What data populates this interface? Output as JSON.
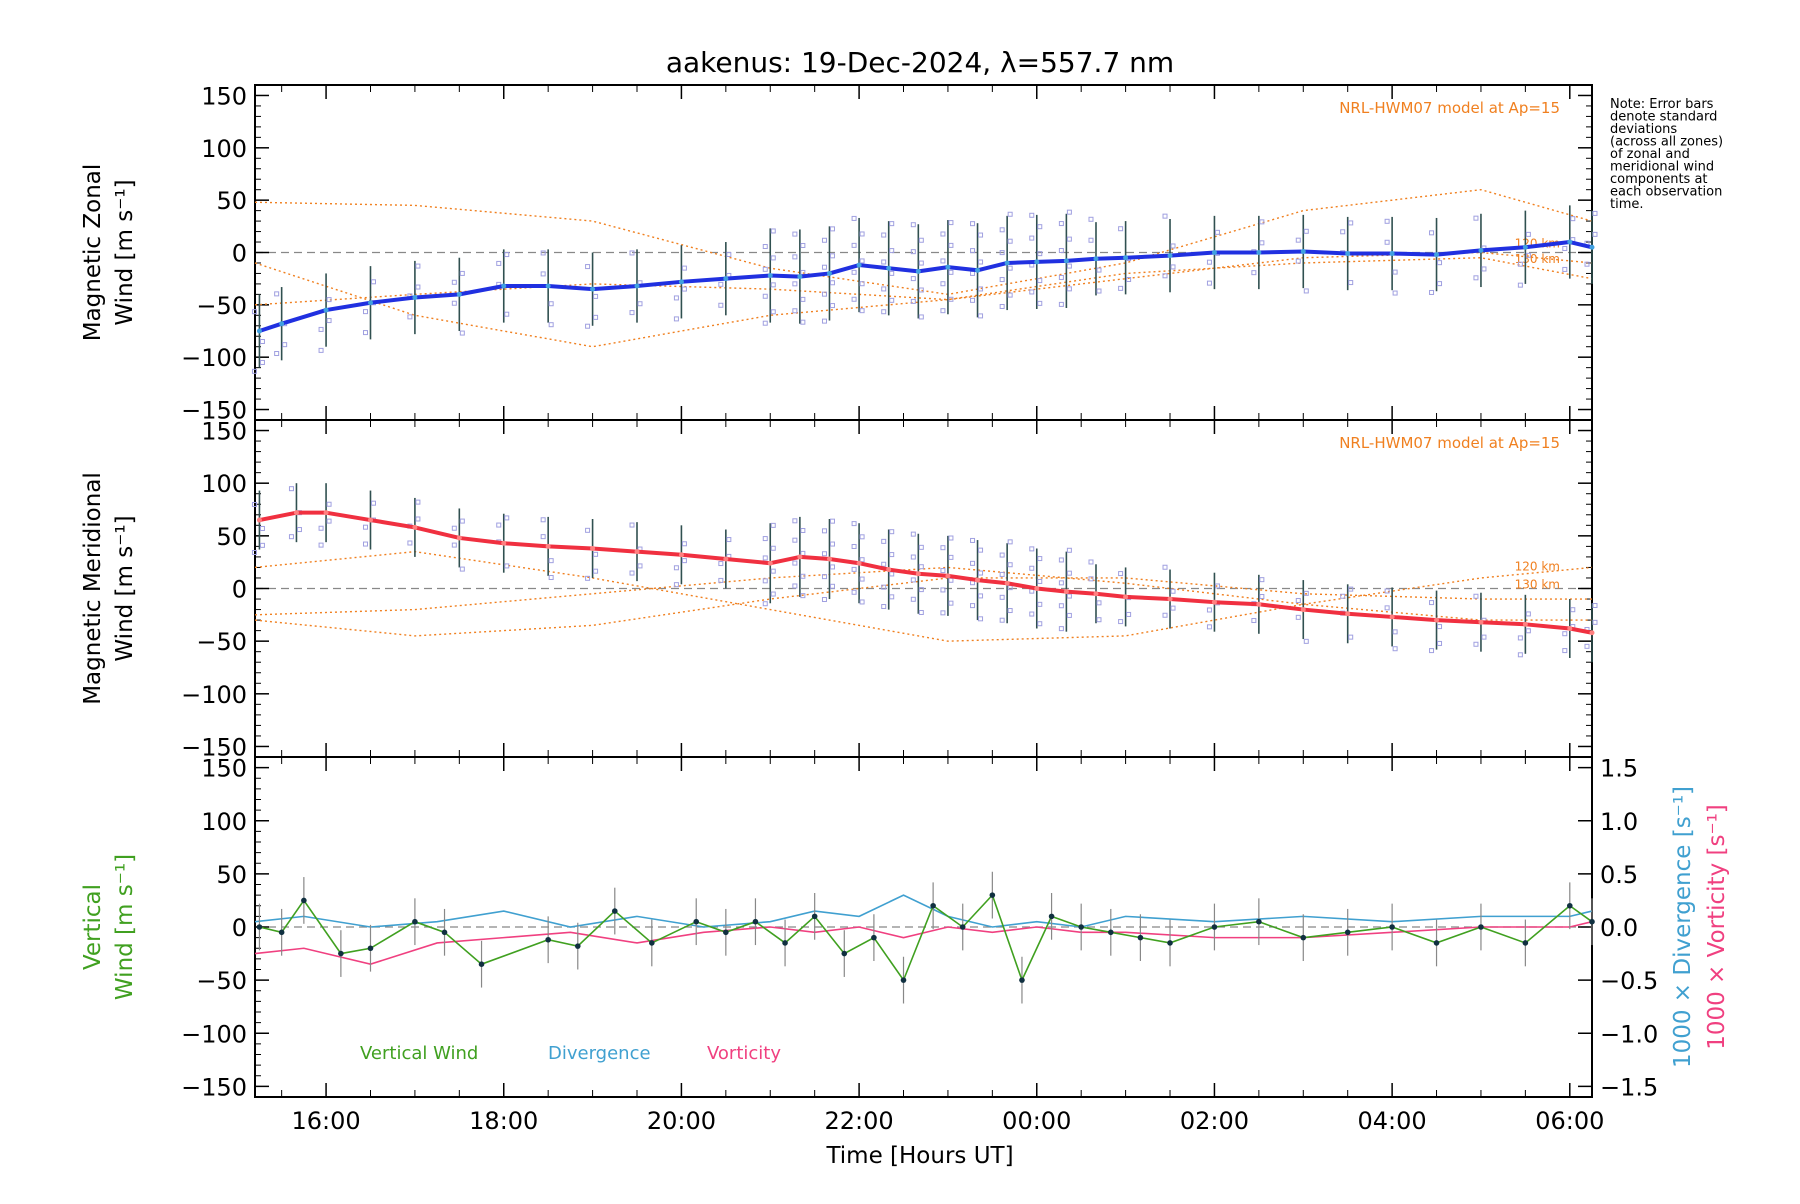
{
  "title": "aakenus: 19-Dec-2024, λ=557.7 nm",
  "note": [
    "Note: Error bars",
    "denote standard",
    "deviations",
    "(across all zones)",
    "of zonal and",
    "meridional wind",
    "components at",
    "each observation",
    "time."
  ],
  "xlabel": "Time [Hours UT]",
  "model_label": "NRL-HWM07 model at Ap=15",
  "altitude_labels": [
    "120 km",
    "130 km"
  ],
  "colors": {
    "zonal": "#2030e0",
    "zonal_light": "#40a0e0",
    "meridional": "#f03040",
    "model": "#f08020",
    "vertical": "#40a020",
    "divergence": "#40a0d0",
    "vorticity": "#f04080",
    "scatter": "#a0a0e0"
  },
  "chart_data": [
    {
      "type": "line",
      "title": "",
      "ylabel": [
        "Magnetic Zonal",
        "Wind [m s⁻¹]"
      ],
      "ylim": [
        -160,
        160
      ],
      "yticks": [
        -150,
        -100,
        -50,
        0,
        50,
        100,
        150
      ],
      "xlim": [
        "15:12",
        "06:15"
      ],
      "xticks": [
        "16:00",
        "18:00",
        "20:00",
        "22:00",
        "00:00",
        "02:00",
        "04:00",
        "06:00"
      ],
      "legend": "top-right",
      "series": [
        {
          "name": "",
          "x": [
            "15:15",
            "15:30",
            "16:00",
            "16:30",
            "17:00",
            "17:30",
            "18:00",
            "18:30",
            "19:00",
            "19:30",
            "20:00",
            "20:30",
            "21:00",
            "21:20",
            "21:40",
            "22:00",
            "22:20",
            "22:40",
            "23:00",
            "23:20",
            "23:40",
            "00:00",
            "00:20",
            "00:40",
            "01:00",
            "01:30",
            "02:00",
            "02:30",
            "03:00",
            "03:30",
            "04:00",
            "04:30",
            "05:00",
            "05:30",
            "06:00",
            "06:15"
          ],
          "values": [
            -75,
            -68,
            -55,
            -48,
            -43,
            -40,
            -32,
            -32,
            -35,
            -32,
            -28,
            -25,
            -22,
            -23,
            -20,
            -12,
            -15,
            -18,
            -14,
            -17,
            -10,
            -9,
            -8,
            -6,
            -5,
            -3,
            0,
            0,
            1,
            -1,
            -1,
            -2,
            2,
            5,
            10,
            5
          ]
        }
      ],
      "model_curves": [
        {
          "name": "120 km",
          "x": [
            "15:12",
            "17:00",
            "19:00",
            "21:00",
            "23:00",
            "01:00",
            "03:00",
            "05:00",
            "06:15"
          ],
          "values": [
            48,
            45,
            30,
            -15,
            -40,
            -10,
            40,
            60,
            30
          ]
        },
        {
          "name": "130 km",
          "x": [
            "15:12",
            "17:00",
            "19:00",
            "21:00",
            "23:00",
            "01:00",
            "03:00",
            "05:00",
            "06:15"
          ],
          "values": [
            -10,
            -60,
            -90,
            -60,
            -45,
            -20,
            -10,
            -5,
            -25
          ]
        },
        {
          "name": "",
          "x": [
            "15:12",
            "17:00",
            "19:00",
            "21:00",
            "23:00",
            "01:00",
            "03:00",
            "05:00",
            "06:15"
          ],
          "values": [
            -50,
            -40,
            -30,
            -35,
            -45,
            -25,
            -5,
            0,
            -10
          ]
        }
      ]
    },
    {
      "type": "line",
      "title": "",
      "ylabel": [
        "Magnetic Meridional",
        "Wind [m s⁻¹]"
      ],
      "ylim": [
        -160,
        160
      ],
      "yticks": [
        -150,
        -100,
        -50,
        0,
        50,
        100,
        150
      ],
      "xlim": [
        "15:12",
        "06:15"
      ],
      "xticks": [
        "16:00",
        "18:00",
        "20:00",
        "22:00",
        "00:00",
        "02:00",
        "04:00",
        "06:00"
      ],
      "legend": "top-right",
      "series": [
        {
          "name": "",
          "x": [
            "15:15",
            "15:40",
            "16:00",
            "16:30",
            "17:00",
            "17:30",
            "18:00",
            "18:30",
            "19:00",
            "19:30",
            "20:00",
            "20:30",
            "21:00",
            "21:20",
            "21:40",
            "22:00",
            "22:20",
            "22:40",
            "23:00",
            "23:20",
            "23:40",
            "00:00",
            "00:20",
            "00:40",
            "01:00",
            "01:30",
            "02:00",
            "02:30",
            "03:00",
            "03:30",
            "04:00",
            "04:30",
            "05:00",
            "05:30",
            "06:00",
            "06:15"
          ],
          "values": [
            65,
            72,
            72,
            65,
            58,
            48,
            43,
            40,
            38,
            35,
            32,
            28,
            24,
            30,
            28,
            24,
            18,
            14,
            12,
            8,
            5,
            0,
            -3,
            -5,
            -8,
            -10,
            -13,
            -15,
            -20,
            -24,
            -27,
            -30,
            -32,
            -34,
            -38,
            -42
          ]
        }
      ],
      "model_curves": [
        {
          "name": "120 km",
          "x": [
            "15:12",
            "17:00",
            "19:00",
            "21:00",
            "23:00",
            "01:00",
            "03:00",
            "05:00",
            "06:15"
          ],
          "values": [
            20,
            35,
            10,
            -20,
            -50,
            -45,
            -15,
            10,
            20
          ]
        },
        {
          "name": "130 km",
          "x": [
            "15:12",
            "17:00",
            "19:00",
            "21:00",
            "23:00",
            "01:00",
            "03:00",
            "05:00",
            "06:15"
          ],
          "values": [
            -30,
            -45,
            -35,
            -10,
            10,
            10,
            -5,
            -10,
            -10
          ]
        },
        {
          "name": "",
          "x": [
            "15:12",
            "17:00",
            "19:00",
            "21:00",
            "23:00",
            "01:00",
            "03:00",
            "05:00",
            "06:15"
          ],
          "values": [
            -25,
            -20,
            -5,
            10,
            20,
            5,
            -15,
            -30,
            -30
          ]
        }
      ]
    },
    {
      "type": "line",
      "title": "",
      "ylabel": [
        "Vertical",
        "Wind [m s⁻¹]"
      ],
      "ylabel_right": [
        "1000 × Divergence [s⁻¹]",
        "1000 × Vorticity [s⁻¹]"
      ],
      "ylim": [
        -160,
        160
      ],
      "yticks": [
        -150,
        -100,
        -50,
        0,
        50,
        100,
        150
      ],
      "ylim_right": [
        -1.6,
        1.6
      ],
      "yticks_right": [
        "−1.5",
        "−1.0",
        "−0.5",
        "0.0",
        "0.5",
        "1.0",
        "1.5"
      ],
      "xlim": [
        "15:12",
        "06:15"
      ],
      "xticks": [
        "16:00",
        "18:00",
        "20:00",
        "22:00",
        "00:00",
        "02:00",
        "04:00",
        "06:00"
      ],
      "legend": "bottom-left",
      "series": [
        {
          "name": "Vertical Wind",
          "x": [
            "15:15",
            "15:30",
            "15:45",
            "16:10",
            "16:30",
            "17:00",
            "17:20",
            "17:45",
            "18:30",
            "18:50",
            "19:15",
            "19:40",
            "20:10",
            "20:30",
            "20:50",
            "21:10",
            "21:30",
            "21:50",
            "22:10",
            "22:30",
            "22:50",
            "23:10",
            "23:30",
            "23:50",
            "00:10",
            "00:30",
            "00:50",
            "01:10",
            "01:30",
            "02:00",
            "02:30",
            "03:00",
            "03:30",
            "04:00",
            "04:30",
            "05:00",
            "05:30",
            "06:00",
            "06:15"
          ],
          "values": [
            0,
            -5,
            25,
            -25,
            -20,
            5,
            -5,
            -35,
            -12,
            -18,
            15,
            -15,
            5,
            -5,
            5,
            -15,
            10,
            -25,
            -10,
            -50,
            20,
            0,
            30,
            -50,
            10,
            0,
            -5,
            -10,
            -15,
            0,
            5,
            -10,
            -5,
            0,
            -15,
            0,
            -15,
            20,
            5
          ]
        },
        {
          "name": "Divergence",
          "axis": "right",
          "x": [
            "15:12",
            "15:45",
            "16:30",
            "17:15",
            "18:00",
            "18:45",
            "19:30",
            "20:15",
            "21:00",
            "21:30",
            "22:00",
            "22:30",
            "23:00",
            "23:30",
            "00:00",
            "00:30",
            "01:00",
            "02:00",
            "03:00",
            "04:00",
            "05:00",
            "06:00",
            "06:15"
          ],
          "values": [
            0.05,
            0.1,
            0.0,
            0.05,
            0.15,
            0.0,
            0.1,
            0.0,
            0.05,
            0.15,
            0.1,
            0.3,
            0.1,
            0.0,
            0.05,
            0.0,
            0.1,
            0.05,
            0.1,
            0.05,
            0.1,
            0.1,
            0.15
          ]
        },
        {
          "name": "Vorticity",
          "axis": "right",
          "x": [
            "15:12",
            "15:45",
            "16:30",
            "17:15",
            "18:00",
            "18:45",
            "19:30",
            "20:15",
            "21:00",
            "21:30",
            "22:00",
            "22:30",
            "23:00",
            "23:30",
            "00:00",
            "00:30",
            "01:00",
            "02:00",
            "03:00",
            "04:00",
            "05:00",
            "06:00",
            "06:15"
          ],
          "values": [
            -0.25,
            -0.2,
            -0.35,
            -0.15,
            -0.1,
            -0.05,
            -0.15,
            -0.05,
            0.0,
            -0.05,
            0.0,
            -0.1,
            0.0,
            -0.05,
            0.0,
            -0.05,
            -0.05,
            -0.1,
            -0.1,
            -0.05,
            0.0,
            0.0,
            0.05
          ]
        }
      ]
    }
  ]
}
